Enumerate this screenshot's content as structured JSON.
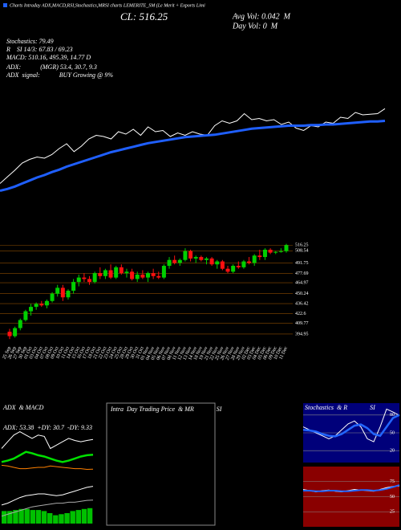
{
  "header": {
    "top_line": "Charts Intraday ADX,MACD,RSI,Stochastics,MRSI charts LEMERITE_SM (Le Merit + Exports Limi",
    "close": "CL: 516.25",
    "avg_vol": "Avg Vol: 0.042  M",
    "day_vol": "Day Vol: 0  M",
    "stochastics": "Stochastics: 79.49",
    "rsi": "R    SI 14/3: 67.83 / 69.23",
    "macd": "MACD: 510.16, 495.39, 14.77 D",
    "adx": "ADX:            (MGR) 53.4, 30.7, 9.3",
    "adx_signal": "ADX  signal:            BUY Growing @ 9%",
    "intraday_title": "Intra  Day Trading Price  & MR              SI"
  },
  "chart_data": [
    {
      "type": "line",
      "series": [
        {
          "color": "#ffffff",
          "values": [
            392,
            403,
            414,
            426,
            432,
            436,
            434,
            440,
            450,
            458,
            445,
            454,
            466,
            472,
            470,
            466,
            478,
            474,
            482,
            472,
            486,
            478,
            480,
            470,
            476,
            472,
            478,
            474,
            472,
            488,
            496,
            492,
            496,
            508,
            498,
            500,
            496,
            498,
            490,
            494,
            484,
            480,
            488,
            486,
            494,
            492,
            502,
            500,
            510,
            506,
            507,
            508,
            516.25
          ]
        },
        {
          "color": "#1f5fff",
          "width": 3,
          "values": [
            380,
            383,
            387,
            392,
            397,
            402,
            406,
            411,
            415,
            420,
            424,
            428,
            432,
            436,
            440,
            444,
            447,
            450,
            453,
            456,
            459,
            461,
            463,
            465,
            467,
            469,
            470,
            471,
            472,
            473,
            475,
            477,
            479,
            481,
            483,
            484,
            485,
            486,
            487,
            488,
            488,
            488,
            489,
            489,
            490,
            490,
            491,
            492,
            493,
            494,
            495,
            495,
            496
          ]
        }
      ],
      "ylim": [
        370,
        530
      ]
    },
    {
      "type": "candlestick",
      "categories": [
        "25 Sep",
        "26 Sep",
        "27 Sep",
        "30 Sep",
        "01 Oct",
        "03 Oct",
        "04 Oct",
        "07 Oct",
        "08 Oct",
        "09 Oct",
        "10 Oct",
        "11 Oct",
        "14 Oct",
        "15 Oct",
        "16 Oct",
        "17 Oct",
        "18 Oct",
        "21 Oct",
        "22 Oct",
        "23 Oct",
        "24 Oct",
        "25 Oct",
        "28 Oct",
        "29 Oct",
        "30 Oct",
        "31 Oct",
        "01 Nov",
        "04 Nov",
        "05 Nov",
        "06 Nov",
        "07 Nov",
        "08 Nov",
        "11 Nov",
        "12 Nov",
        "13 Nov",
        "14 Nov",
        "18 Nov",
        "19 Nov",
        "21 Nov",
        "22 Nov",
        "25 Nov",
        "26 Nov",
        "27 Nov",
        "28 Nov",
        "29 Nov",
        "02 Dec",
        "03 Dec",
        "04 Dec",
        "05 Dec",
        "06 Dec",
        "09 Dec",
        "10 Dec",
        "11 Dec"
      ],
      "open": [
        398,
        392,
        403,
        414,
        426,
        432,
        436,
        434,
        440,
        450,
        458,
        445,
        454,
        466,
        472,
        470,
        466,
        478,
        474,
        482,
        472,
        486,
        478,
        480,
        470,
        476,
        472,
        478,
        474,
        472,
        488,
        496,
        492,
        496,
        508,
        498,
        500,
        496,
        498,
        490,
        494,
        484,
        480,
        488,
        486,
        494,
        492,
        502,
        500,
        510,
        506,
        507,
        508
      ],
      "high": [
        402,
        405,
        416,
        428,
        436,
        438,
        440,
        442,
        452,
        462,
        462,
        456,
        470,
        476,
        478,
        474,
        480,
        486,
        484,
        490,
        488,
        490,
        484,
        484,
        480,
        482,
        480,
        484,
        480,
        490,
        500,
        502,
        498,
        512,
        510,
        502,
        502,
        500,
        500,
        496,
        496,
        488,
        490,
        494,
        496,
        500,
        504,
        510,
        512,
        512,
        508,
        512,
        518
      ],
      "low": [
        388,
        390,
        400,
        412,
        420,
        428,
        432,
        430,
        438,
        446,
        440,
        442,
        450,
        460,
        466,
        462,
        464,
        470,
        470,
        470,
        470,
        476,
        472,
        468,
        466,
        470,
        466,
        470,
        470,
        470,
        484,
        490,
        488,
        494,
        494,
        492,
        494,
        490,
        488,
        484,
        482,
        478,
        478,
        484,
        484,
        490,
        488,
        496,
        496,
        504,
        504,
        506,
        506
      ],
      "close": [
        392,
        403,
        414,
        426,
        432,
        436,
        434,
        440,
        450,
        458,
        445,
        454,
        466,
        472,
        470,
        466,
        478,
        474,
        482,
        472,
        486,
        478,
        480,
        470,
        476,
        472,
        478,
        474,
        472,
        488,
        496,
        492,
        496,
        508,
        498,
        500,
        496,
        498,
        490,
        494,
        484,
        480,
        488,
        486,
        494,
        492,
        502,
        500,
        510,
        506,
        507,
        508,
        516.25
      ],
      "up_color": "#00d000",
      "down_color": "#ff1010",
      "grid_color": "#8a4b00",
      "grid": true,
      "ylim": [
        385,
        522
      ],
      "yticks": [
        516.25,
        508.54,
        491.75,
        477.69,
        464.97,
        450.24,
        436.42,
        422.6,
        409.77,
        394.95
      ]
    },
    {
      "type": "line",
      "title": "ADX  & MACD",
      "label": "ADX: 53.38  +DY: 30.7  -DY: 9.33",
      "ylim": [
        0,
        80
      ],
      "series": [
        {
          "color": "#ffffff",
          "values": [
            40,
            50,
            60,
            65,
            60,
            55,
            60,
            58,
            40,
            45,
            50,
            55,
            52,
            50,
            52,
            53.38
          ]
        },
        {
          "color": "#00e000",
          "width": 2.5,
          "values": [
            20,
            22,
            25,
            30,
            35,
            33,
            30,
            28,
            25,
            22,
            20,
            22,
            25,
            28,
            30,
            30.7
          ]
        },
        {
          "color": "#ff8000",
          "values": [
            15,
            14,
            12,
            10,
            10,
            11,
            12,
            12,
            14,
            13,
            12,
            11,
            10,
            10,
            9,
            9.33
          ]
        }
      ]
    },
    {
      "type": "macd",
      "ylim": [
        470,
        515
      ],
      "series": [
        {
          "color": "#ffffff",
          "values": [
            490,
            492,
            495,
            498,
            500,
            501,
            502,
            502,
            501,
            500,
            501,
            503,
            505,
            507,
            509,
            510.16
          ]
        },
        {
          "color": "#aaaaaa",
          "values": [
            478,
            480,
            482,
            484,
            486,
            488,
            489,
            490,
            491,
            492,
            492,
            493,
            493,
            494,
            495,
            495.39
          ]
        }
      ],
      "bars": {
        "color": "#00c000",
        "ylim": [
          0,
          40
        ],
        "values": [
          12,
          12,
          13,
          14,
          14,
          13,
          13,
          12,
          10,
          8,
          9,
          10,
          12,
          13,
          14,
          14.77
        ]
      }
    },
    {
      "type": "line",
      "title": "Stochastics  & R              SI",
      "background": "#00007a",
      "grid": true,
      "ylim": [
        0,
        100
      ],
      "yticks": [
        80,
        50,
        20
      ],
      "series": [
        {
          "color": "#ffffff",
          "values": [
            60,
            55,
            50,
            45,
            40,
            45,
            55,
            65,
            70,
            60,
            40,
            35,
            60,
            90,
            85,
            79.49
          ]
        },
        {
          "color": "#2266ff",
          "width": 2.5,
          "values": [
            55,
            54,
            52,
            48,
            45,
            44,
            48,
            55,
            62,
            64,
            58,
            48,
            45,
            60,
            75,
            80
          ]
        }
      ]
    },
    {
      "type": "line",
      "background": "#8a0000",
      "grid": true,
      "ylim": [
        0,
        100
      ],
      "yticks": [
        75,
        50,
        25
      ],
      "series": [
        {
          "color": "#ffffff",
          "values": [
            62,
            60,
            58,
            60,
            61,
            59,
            58,
            60,
            62,
            61,
            60,
            59,
            62,
            65,
            67,
            67.83
          ]
        },
        {
          "color": "#2266ff",
          "width": 2,
          "values": [
            60,
            60,
            59,
            59,
            60,
            60,
            59,
            59,
            60,
            61,
            61,
            60,
            61,
            63,
            66,
            69.23
          ]
        }
      ]
    }
  ]
}
